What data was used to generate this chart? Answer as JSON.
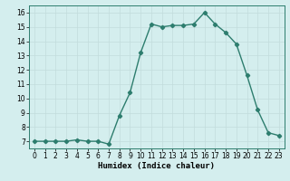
{
  "x": [
    0,
    1,
    2,
    3,
    4,
    5,
    6,
    7,
    8,
    9,
    10,
    11,
    12,
    13,
    14,
    15,
    16,
    17,
    18,
    19,
    20,
    21,
    22,
    23
  ],
  "y": [
    7,
    7,
    7,
    7,
    7.1,
    7,
    7,
    6.8,
    8.8,
    10.4,
    13.2,
    15.2,
    15.0,
    15.1,
    15.1,
    15.2,
    16.0,
    15.2,
    14.6,
    13.8,
    11.6,
    9.2,
    7.6,
    7.4
  ],
  "line_color": "#2d7d6e",
  "marker": "D",
  "marker_size": 2.2,
  "bg_color": "#d4eeee",
  "grid_major_color": "#c2dcdc",
  "grid_minor_color": "#c2dcdc",
  "xlabel": "Humidex (Indice chaleur)",
  "xlim": [
    -0.5,
    23.5
  ],
  "ylim": [
    6.5,
    16.5
  ],
  "yticks": [
    7,
    8,
    9,
    10,
    11,
    12,
    13,
    14,
    15,
    16
  ],
  "xticks": [
    0,
    1,
    2,
    3,
    4,
    5,
    6,
    7,
    8,
    9,
    10,
    11,
    12,
    13,
    14,
    15,
    16,
    17,
    18,
    19,
    20,
    21,
    22,
    23
  ],
  "xlabel_fontsize": 6.5,
  "tick_fontsize": 5.5,
  "line_width": 1.0
}
